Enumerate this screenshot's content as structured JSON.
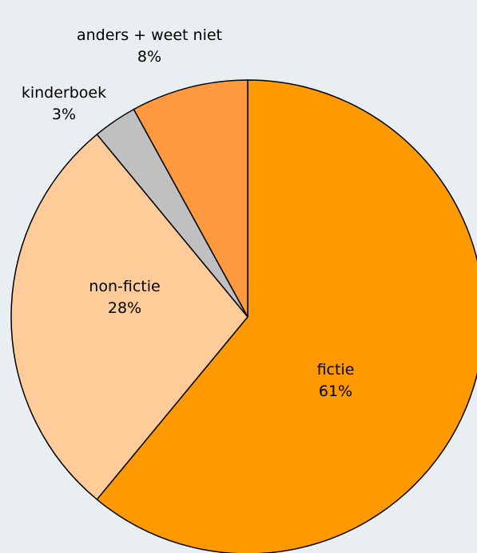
{
  "chart_data": {
    "type": "pie",
    "categories": [
      "fictie",
      "non-fictie",
      "kinderboek",
      "anders + weet niet"
    ],
    "values": [
      61,
      28,
      3,
      8
    ],
    "value_labels": [
      "61%",
      "28%",
      "3%",
      "8%"
    ],
    "colors": [
      "#FF9900",
      "#FFCC99",
      "#C0C0C0",
      "#FF9940"
    ]
  }
}
